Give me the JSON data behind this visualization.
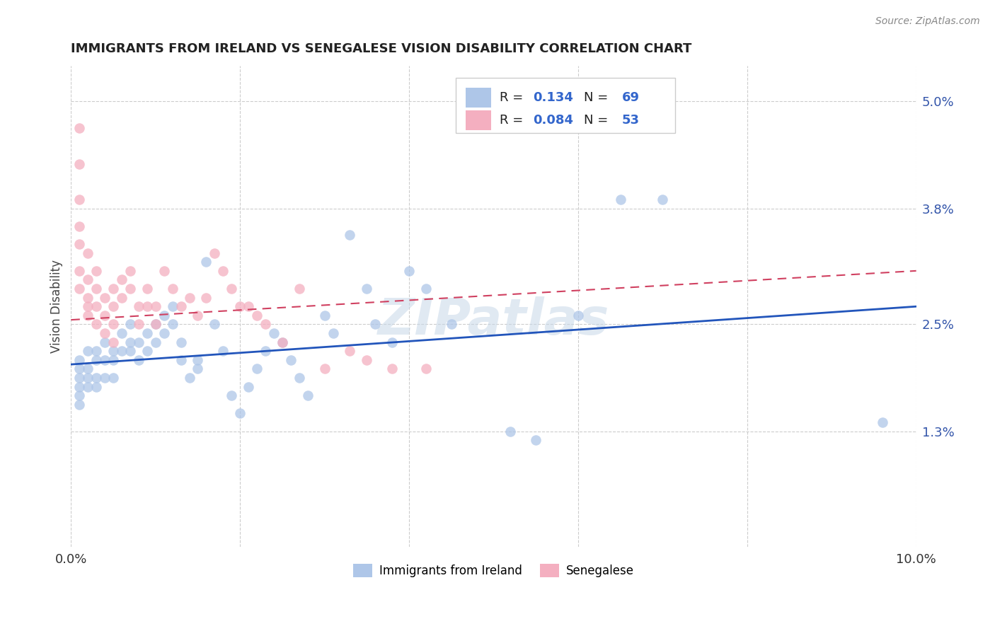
{
  "title": "IMMIGRANTS FROM IRELAND VS SENEGALESE VISION DISABILITY CORRELATION CHART",
  "source": "Source: ZipAtlas.com",
  "ylabel": "Vision Disability",
  "xlim": [
    0.0,
    0.1
  ],
  "ylim": [
    0.0,
    0.054
  ],
  "yticks_right": [
    0.013,
    0.025,
    0.038,
    0.05
  ],
  "yticklabels_right": [
    "1.3%",
    "2.5%",
    "3.8%",
    "5.0%"
  ],
  "ireland_R": 0.134,
  "ireland_N": 69,
  "senegal_R": 0.084,
  "senegal_N": 53,
  "ireland_color": "#aec6e8",
  "senegal_color": "#f4afc0",
  "ireland_line_color": "#2255bb",
  "senegal_line_color": "#d04060",
  "background_color": "#ffffff",
  "grid_color": "#cccccc",
  "legend_label_ireland": "Immigrants from Ireland",
  "legend_label_senegal": "Senegalese",
  "watermark": "ZIPatlas",
  "R_N_color": "#3366cc",
  "ireland_x": [
    0.001,
    0.001,
    0.001,
    0.001,
    0.001,
    0.001,
    0.002,
    0.002,
    0.002,
    0.002,
    0.003,
    0.003,
    0.003,
    0.003,
    0.004,
    0.004,
    0.004,
    0.005,
    0.005,
    0.005,
    0.006,
    0.006,
    0.007,
    0.007,
    0.007,
    0.008,
    0.008,
    0.009,
    0.009,
    0.01,
    0.01,
    0.011,
    0.011,
    0.012,
    0.012,
    0.013,
    0.013,
    0.014,
    0.015,
    0.015,
    0.016,
    0.017,
    0.018,
    0.019,
    0.02,
    0.021,
    0.022,
    0.023,
    0.024,
    0.025,
    0.026,
    0.027,
    0.028,
    0.03,
    0.031,
    0.033,
    0.035,
    0.036,
    0.038,
    0.04,
    0.042,
    0.045,
    0.048,
    0.052,
    0.055,
    0.06,
    0.065,
    0.07,
    0.096
  ],
  "ireland_y": [
    0.021,
    0.02,
    0.019,
    0.018,
    0.017,
    0.016,
    0.022,
    0.02,
    0.019,
    0.018,
    0.022,
    0.021,
    0.019,
    0.018,
    0.023,
    0.021,
    0.019,
    0.022,
    0.021,
    0.019,
    0.024,
    0.022,
    0.025,
    0.023,
    0.022,
    0.023,
    0.021,
    0.024,
    0.022,
    0.025,
    0.023,
    0.026,
    0.024,
    0.027,
    0.025,
    0.023,
    0.021,
    0.019,
    0.021,
    0.02,
    0.032,
    0.025,
    0.022,
    0.017,
    0.015,
    0.018,
    0.02,
    0.022,
    0.024,
    0.023,
    0.021,
    0.019,
    0.017,
    0.026,
    0.024,
    0.035,
    0.029,
    0.025,
    0.023,
    0.031,
    0.029,
    0.025,
    0.049,
    0.013,
    0.012,
    0.026,
    0.039,
    0.039,
    0.014
  ],
  "senegal_x": [
    0.001,
    0.001,
    0.001,
    0.001,
    0.001,
    0.001,
    0.001,
    0.002,
    0.002,
    0.002,
    0.002,
    0.002,
    0.003,
    0.003,
    0.003,
    0.003,
    0.004,
    0.004,
    0.004,
    0.005,
    0.005,
    0.005,
    0.005,
    0.006,
    0.006,
    0.007,
    0.007,
    0.008,
    0.008,
    0.009,
    0.009,
    0.01,
    0.01,
    0.011,
    0.012,
    0.013,
    0.014,
    0.015,
    0.016,
    0.017,
    0.018,
    0.019,
    0.02,
    0.021,
    0.022,
    0.023,
    0.025,
    0.027,
    0.03,
    0.033,
    0.035,
    0.038,
    0.042
  ],
  "senegal_y": [
    0.047,
    0.043,
    0.039,
    0.036,
    0.034,
    0.031,
    0.029,
    0.027,
    0.033,
    0.03,
    0.028,
    0.026,
    0.031,
    0.029,
    0.027,
    0.025,
    0.028,
    0.026,
    0.024,
    0.029,
    0.027,
    0.025,
    0.023,
    0.03,
    0.028,
    0.031,
    0.029,
    0.027,
    0.025,
    0.029,
    0.027,
    0.027,
    0.025,
    0.031,
    0.029,
    0.027,
    0.028,
    0.026,
    0.028,
    0.033,
    0.031,
    0.029,
    0.027,
    0.027,
    0.026,
    0.025,
    0.023,
    0.029,
    0.02,
    0.022,
    0.021,
    0.02,
    0.02
  ],
  "ireland_line_x0": 0.0,
  "ireland_line_y0": 0.0205,
  "ireland_line_x1": 0.1,
  "ireland_line_y1": 0.027,
  "senegal_line_x0": 0.0,
  "senegal_line_y0": 0.0255,
  "senegal_line_x1": 0.1,
  "senegal_line_y1": 0.031
}
